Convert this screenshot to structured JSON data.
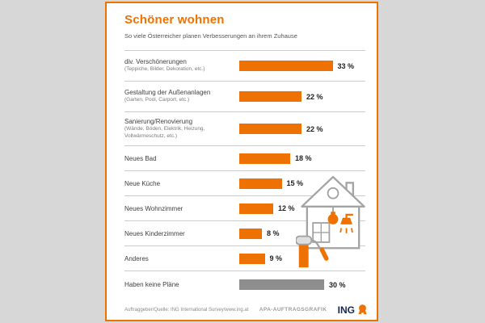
{
  "header": {
    "title": "Schöner wohnen",
    "subtitle": "So viele Österreicher planen Verbesserungen an ihrem Zuhause"
  },
  "chart_data": {
    "type": "bar",
    "orientation": "horizontal",
    "title": "Schöner wohnen",
    "subtitle": "So viele Österreicher planen Verbesserungen an ihrem Zuhause",
    "unit": "%",
    "xlim": [
      0,
      35
    ],
    "grid": false,
    "legend": null,
    "categories": [
      "div. Verschönerungen",
      "Gestaltung der Außenanlagen",
      "Sanierung/Renovierung",
      "Neues Bad",
      "Neue Küche",
      "Neues Wohnzimmer",
      "Neues Kinderzimmer",
      "Anderes",
      "Haben keine Pläne"
    ],
    "sublabels": [
      "(Teppiche, Bilder, Dekoration, etc.)",
      "(Garten, Pool, Carport, etc.)",
      "(Wände, Böden, Elektrik, Heizung, Vollwärmeschutz, etc.)",
      "",
      "",
      "",
      "",
      "",
      ""
    ],
    "values": [
      33,
      22,
      22,
      18,
      15,
      12,
      8,
      9,
      30
    ],
    "value_labels": [
      "33 %",
      "22 %",
      "22 %",
      "18 %",
      "15 %",
      "12 %",
      "8 %",
      "9 %",
      "30 %"
    ],
    "bar_color": "#ee7203",
    "last_bar_color": "#8e8e8e"
  },
  "colors": {
    "accent_orange": "#ee7203",
    "gray_bar": "#8e8e8e",
    "page_background": "#d7d7d7",
    "logo_navy": "#13294b"
  },
  "icons": {
    "house": "house-illustration",
    "lightbulb": "lightbulb-icon",
    "shower": "shower-icon",
    "paint_roller": "paint-roller-icon",
    "lion": "ing-lion-icon"
  },
  "footer": {
    "source": "Auftraggeber/Quelle: ING International Survey/www.ing.at",
    "credit": "APA-AUFTRAGSGRAFIK",
    "logo_text": "ING"
  }
}
